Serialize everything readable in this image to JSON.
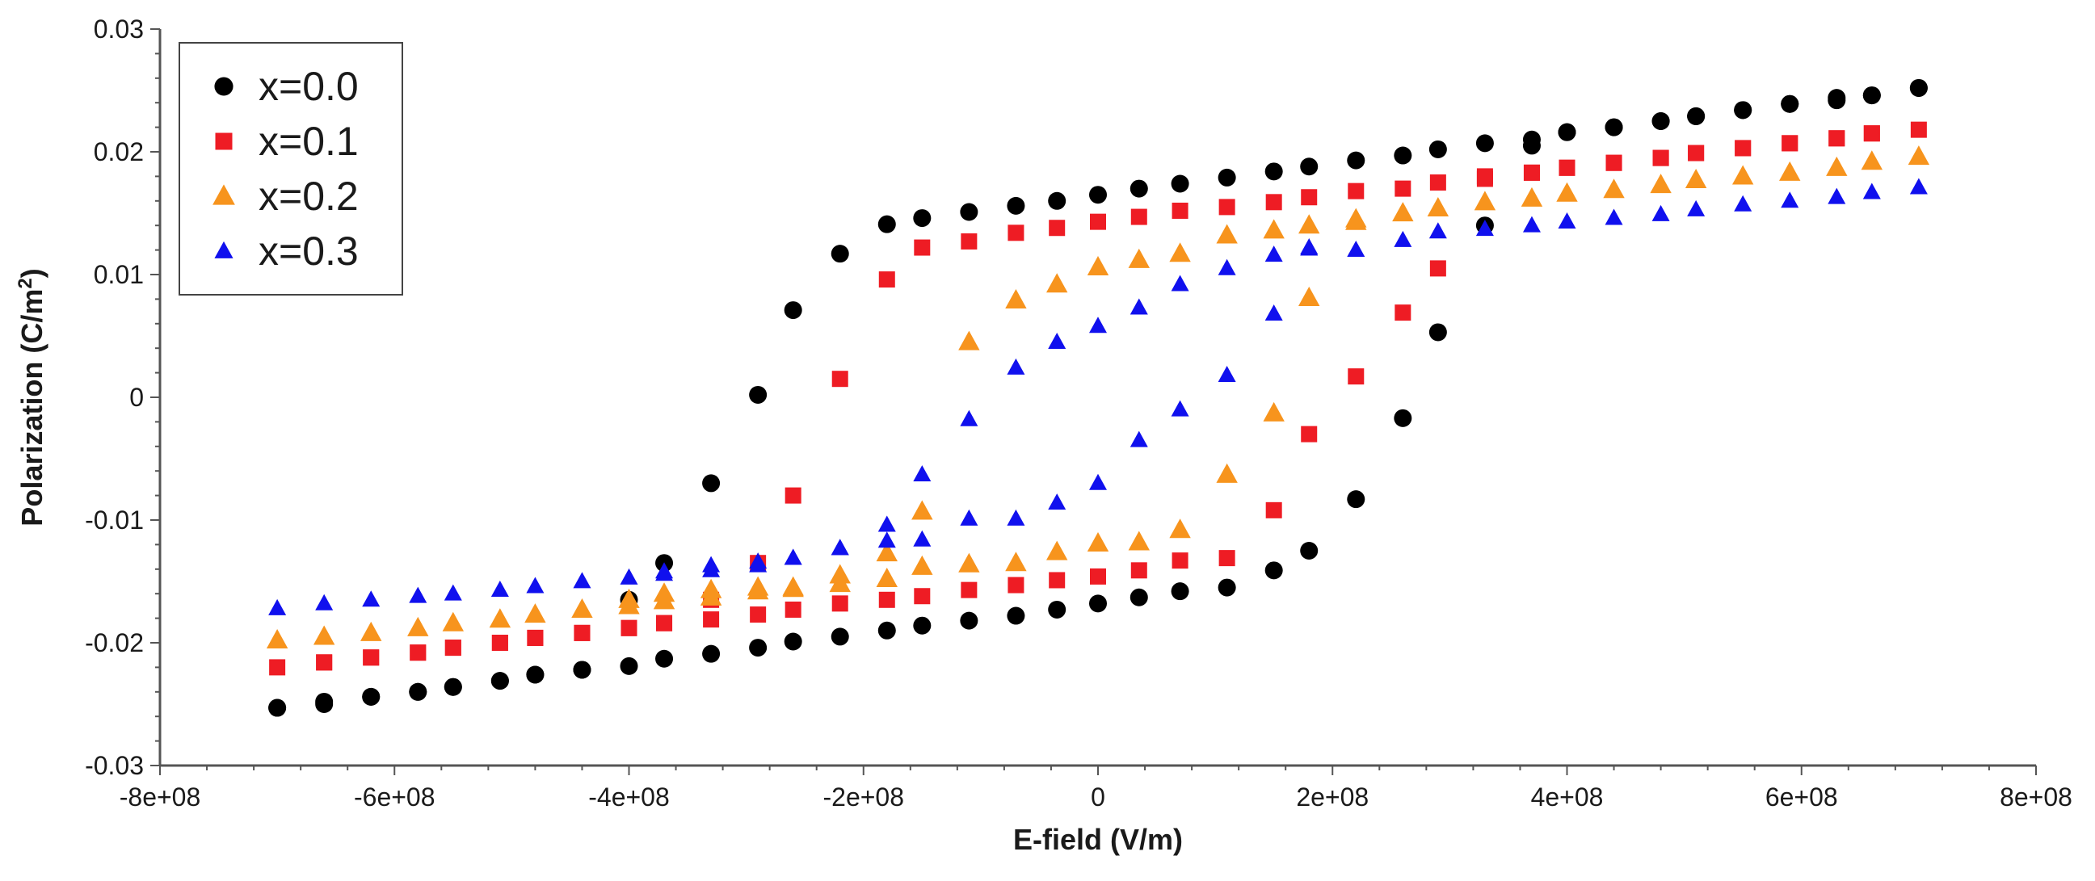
{
  "chart_data": {
    "type": "scatter",
    "title": "",
    "xlabel": "E-field (V/m)",
    "ylabel_main": "Polarization (C/m",
    "ylabel_sup": "2",
    "ylabel_end": ")",
    "xlim": [
      -800000000,
      800000000
    ],
    "ylim": [
      -0.03,
      0.03
    ],
    "xticks": [
      -800000000,
      -600000000,
      -400000000,
      -200000000,
      0,
      200000000,
      400000000,
      600000000,
      800000000
    ],
    "xtick_labels": [
      "-8e+08",
      "-6e+08",
      "-4e+08",
      "-2e+08",
      "0",
      "2e+08",
      "4e+08",
      "6e+08",
      "8e+08"
    ],
    "yticks": [
      -0.03,
      -0.02,
      -0.01,
      0,
      0.01,
      0.02,
      0.03
    ],
    "ytick_labels": [
      "-0.03",
      "-0.02",
      "-0.01",
      "0",
      "0.01",
      "0.02",
      "0.03"
    ],
    "grid": false,
    "legend_position": "top-left",
    "series": [
      {
        "name": "x=0.0",
        "color": "#000000",
        "marker": "circle",
        "x": [
          -700000000.0,
          -660000000.0,
          -620000000.0,
          -580000000.0,
          -550000000.0,
          -510000000.0,
          -480000000.0,
          -440000000.0,
          -400000000.0,
          -370000000.0,
          -330000000.0,
          -290000000.0,
          -260000000.0,
          -220000000.0,
          -180000000.0,
          -150000000.0,
          -110000000.0,
          -70000000.0,
          -35000000.0,
          0,
          35000000.0,
          70000000.0,
          110000000.0,
          150000000.0,
          180000000.0,
          220000000.0,
          260000000.0,
          290000000.0,
          330000000.0,
          370000000.0,
          400000000.0,
          440000000.0,
          480000000.0,
          510000000.0,
          550000000.0,
          590000000.0,
          630000000.0,
          660000000.0,
          700000000.0,
          700000000.0,
          660000000.0,
          630000000.0,
          590000000.0,
          550000000.0,
          510000000.0,
          480000000.0,
          440000000.0,
          400000000.0,
          370000000.0,
          330000000.0,
          290000000.0,
          260000000.0,
          220000000.0,
          180000000.0,
          150000000.0,
          110000000.0,
          70000000.0,
          35000000.0,
          0,
          -35000000.0,
          -70000000.0,
          -110000000.0,
          -150000000.0,
          -180000000.0,
          -220000000.0,
          -260000000.0,
          -290000000.0,
          -330000000.0,
          -370000000.0,
          -400000000.0,
          -440000000.0,
          -480000000.0,
          -510000000.0,
          -550000000.0,
          -580000000.0,
          -620000000.0,
          -660000000.0,
          -700000000.0
        ],
        "y": [
          -0.0253,
          -0.0248,
          -0.0244,
          -0.024,
          -0.0236,
          -0.0231,
          -0.0226,
          -0.0222,
          -0.0219,
          -0.0213,
          -0.0209,
          -0.0204,
          -0.0199,
          -0.0195,
          -0.019,
          -0.0186,
          -0.0182,
          -0.0178,
          -0.0173,
          -0.0168,
          -0.0163,
          -0.0158,
          -0.0155,
          -0.0141,
          -0.0125,
          -0.0083,
          -0.0017,
          0.0053,
          0.014,
          0.0205,
          0.0216,
          0.022,
          0.0225,
          0.0229,
          0.0234,
          0.0239,
          0.0242,
          0.0246,
          0.0252,
          0.0252,
          0.0246,
          0.0244,
          0.0239,
          0.0234,
          0.0229,
          0.0225,
          0.022,
          0.0216,
          0.021,
          0.0207,
          0.0202,
          0.0197,
          0.0193,
          0.0188,
          0.0184,
          0.0179,
          0.0174,
          0.017,
          0.0165,
          0.016,
          0.0156,
          0.0151,
          0.0146,
          0.0141,
          0.0117,
          0.0071,
          0.0002,
          -0.007,
          -0.0135,
          -0.0165,
          -0.0222,
          -0.0226,
          -0.0231,
          -0.0236,
          -0.024,
          -0.0244,
          -0.025,
          -0.0253
        ]
      },
      {
        "name": "x=0.1",
        "color": "#ee1c24",
        "marker": "square",
        "x": [
          -700000000.0,
          -660000000.0,
          -620000000.0,
          -580000000.0,
          -550000000.0,
          -510000000.0,
          -480000000.0,
          -440000000.0,
          -400000000.0,
          -370000000.0,
          -330000000.0,
          -290000000.0,
          -260000000.0,
          -220000000.0,
          -180000000.0,
          -150000000.0,
          -110000000.0,
          -70000000.0,
          -35000000.0,
          0,
          35000000.0,
          70000000.0,
          110000000.0,
          150000000.0,
          180000000.0,
          220000000.0,
          260000000.0,
          290000000.0,
          330000000.0,
          370000000.0,
          400000000.0,
          440000000.0,
          480000000.0,
          510000000.0,
          550000000.0,
          590000000.0,
          630000000.0,
          660000000.0,
          700000000.0,
          660000000.0,
          630000000.0,
          590000000.0,
          550000000.0,
          510000000.0,
          480000000.0,
          440000000.0,
          400000000.0,
          370000000.0,
          330000000.0,
          290000000.0,
          260000000.0,
          220000000.0,
          180000000.0,
          150000000.0,
          110000000.0,
          70000000.0,
          35000000.0,
          0,
          -35000000.0,
          -70000000.0,
          -110000000.0,
          -150000000.0,
          -180000000.0,
          -220000000.0,
          -260000000.0,
          -290000000.0,
          -330000000.0,
          -370000000.0,
          -400000000.0,
          -440000000.0,
          -480000000.0,
          -510000000.0,
          -550000000.0,
          -580000000.0,
          -620000000.0,
          -660000000.0
        ],
        "y": [
          -0.022,
          -0.0216,
          -0.0212,
          -0.0208,
          -0.0204,
          -0.02,
          -0.0196,
          -0.0192,
          -0.0188,
          -0.0184,
          -0.0181,
          -0.0177,
          -0.0173,
          -0.0168,
          -0.0165,
          -0.0162,
          -0.0157,
          -0.0153,
          -0.0149,
          -0.0146,
          -0.0141,
          -0.0133,
          -0.0131,
          -0.0092,
          -0.003,
          0.0017,
          0.0069,
          0.0105,
          0.0178,
          0.0183,
          0.0187,
          0.0191,
          0.0195,
          0.0199,
          0.0203,
          0.0207,
          0.0211,
          0.0215,
          0.0218,
          0.0215,
          0.0211,
          0.0207,
          0.0203,
          0.0199,
          0.0195,
          0.0191,
          0.0187,
          0.0183,
          0.018,
          0.0175,
          0.017,
          0.0168,
          0.0163,
          0.0159,
          0.0155,
          0.0152,
          0.0147,
          0.0143,
          0.0138,
          0.0134,
          0.0127,
          0.0122,
          0.0096,
          0.0015,
          -0.008,
          -0.0135,
          -0.0165,
          -0.0184,
          -0.0188,
          -0.0192,
          -0.0196,
          -0.02,
          -0.0204,
          -0.0208,
          -0.0212,
          -0.0216
        ]
      },
      {
        "name": "x=0.2",
        "color": "#f7941d",
        "marker": "triangle",
        "x": [
          -700000000.0,
          -660000000.0,
          -620000000.0,
          -580000000.0,
          -550000000.0,
          -510000000.0,
          -480000000.0,
          -440000000.0,
          -400000000.0,
          -370000000.0,
          -330000000.0,
          -290000000.0,
          -260000000.0,
          -220000000.0,
          -180000000.0,
          -150000000.0,
          -110000000.0,
          -70000000.0,
          -35000000.0,
          0,
          35000000.0,
          70000000.0,
          110000000.0,
          150000000.0,
          180000000.0,
          220000000.0,
          260000000.0,
          290000000.0,
          330000000.0,
          370000000.0,
          400000000.0,
          440000000.0,
          480000000.0,
          510000000.0,
          550000000.0,
          590000000.0,
          630000000.0,
          660000000.0,
          700000000.0,
          220000000.0,
          180000000.0,
          150000000.0,
          110000000.0,
          70000000.0,
          35000000.0,
          0,
          -35000000.0,
          -70000000.0,
          -110000000.0,
          -150000000.0,
          -180000000.0,
          -220000000.0,
          -260000000.0,
          -290000000.0,
          -330000000.0,
          -370000000.0,
          -400000000.0
        ],
        "y": [
          -0.0198,
          -0.0195,
          -0.0192,
          -0.0188,
          -0.0184,
          -0.0181,
          -0.0177,
          -0.0173,
          -0.017,
          -0.0166,
          -0.0163,
          -0.0158,
          -0.0156,
          -0.0152,
          -0.0148,
          -0.0138,
          -0.0136,
          -0.0135,
          -0.0126,
          -0.0119,
          -0.0118,
          -0.0108,
          -0.0063,
          -0.0013,
          0.0081,
          0.0145,
          0.015,
          0.0154,
          0.0159,
          0.0162,
          0.0166,
          0.0169,
          0.0173,
          0.0177,
          0.018,
          0.0183,
          0.0187,
          0.0192,
          0.0196,
          0.0143,
          0.014,
          0.0136,
          0.0132,
          0.0117,
          0.0112,
          0.0106,
          0.0092,
          0.0079,
          0.0045,
          -0.0093,
          -0.0127,
          -0.0145,
          -0.0155,
          -0.0155,
          -0.0157,
          -0.016,
          -0.0165
        ]
      },
      {
        "name": "x=0.3",
        "color": "#1010ee",
        "marker": "triangle",
        "x": [
          -700000000.0,
          -660000000.0,
          -620000000.0,
          -580000000.0,
          -550000000.0,
          -510000000.0,
          -480000000.0,
          -440000000.0,
          -400000000.0,
          -370000000.0,
          -330000000.0,
          -290000000.0,
          -260000000.0,
          -220000000.0,
          -180000000.0,
          -150000000.0,
          -110000000.0,
          -70000000.0,
          -35000000.0,
          0,
          35000000.0,
          70000000.0,
          110000000.0,
          150000000.0,
          180000000.0,
          220000000.0,
          260000000.0,
          290000000.0,
          330000000.0,
          370000000.0,
          400000000.0,
          440000000.0,
          480000000.0,
          510000000.0,
          550000000.0,
          590000000.0,
          630000000.0,
          660000000.0,
          700000000.0,
          180000000.0,
          150000000.0,
          110000000.0,
          70000000.0,
          35000000.0,
          0,
          -35000000.0,
          -70000000.0,
          -110000000.0,
          -150000000.0,
          -180000000.0,
          -220000000.0,
          -260000000.0,
          -290000000.0,
          -330000000.0,
          -370000000.0
        ],
        "y": [
          -0.0172,
          -0.0168,
          -0.0165,
          -0.0162,
          -0.016,
          -0.0157,
          -0.0154,
          -0.015,
          -0.0147,
          -0.0142,
          -0.0137,
          -0.0134,
          -0.0131,
          -0.0123,
          -0.0117,
          -0.0116,
          -0.0099,
          -0.0099,
          -0.0086,
          -0.007,
          -0.0035,
          -0.001,
          0.0018,
          0.0068,
          0.0121,
          0.012,
          0.0128,
          0.0135,
          0.0137,
          0.014,
          0.0143,
          0.0146,
          0.0149,
          0.0153,
          0.0157,
          0.016,
          0.0163,
          0.0167,
          0.0171,
          0.0122,
          0.0116,
          0.0105,
          0.0092,
          0.0073,
          0.0058,
          0.0045,
          0.0024,
          -0.0018,
          -0.0063,
          -0.0104,
          -0.0123,
          -0.0131,
          -0.0137,
          -0.0141,
          -0.0144
        ]
      }
    ]
  }
}
